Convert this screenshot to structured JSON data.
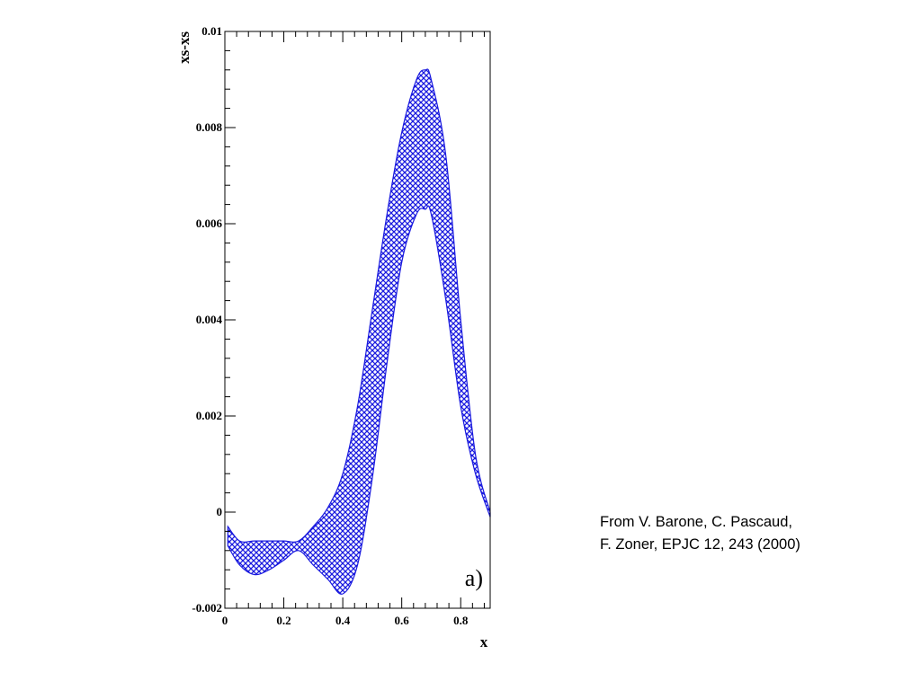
{
  "caption": {
    "line1": "From V. Barone, C. Pascaud,",
    "line2": "F. Zoner, EPJC 12, 243 (2000)"
  },
  "chart_data": {
    "type": "area",
    "title": "",
    "xlabel": "x",
    "ylabel": "xs-xs",
    "panel_label": "a)",
    "xlim": [
      0,
      0.9
    ],
    "ylim": [
      -0.002,
      0.01
    ],
    "x_ticks": [
      {
        "value": 0,
        "label": "0"
      },
      {
        "value": 0.2,
        "label": "0.2"
      },
      {
        "value": 0.4,
        "label": "0.4"
      },
      {
        "value": 0.6,
        "label": "0.6"
      },
      {
        "value": 0.8,
        "label": "0.8"
      }
    ],
    "y_ticks": [
      {
        "value": -0.002,
        "label": "-0.002"
      },
      {
        "value": 0,
        "label": "0"
      },
      {
        "value": 0.002,
        "label": "0.002"
      },
      {
        "value": 0.004,
        "label": "0.004"
      },
      {
        "value": 0.006,
        "label": "0.006"
      },
      {
        "value": 0.008,
        "label": "0.008"
      },
      {
        "value": 0.01,
        "label": "0.01"
      }
    ],
    "grid": false,
    "fill_color": "#1a1adf",
    "fill_style": "crosshatch",
    "band": {
      "x": [
        0.01,
        0.05,
        0.1,
        0.15,
        0.2,
        0.25,
        0.3,
        0.35,
        0.4,
        0.45,
        0.5,
        0.55,
        0.6,
        0.65,
        0.68,
        0.7,
        0.75,
        0.8,
        0.85,
        0.9
      ],
      "upper": [
        -0.0003,
        -0.0006,
        -0.0006,
        -0.0006,
        -0.0006,
        -0.0006,
        -0.0003,
        0.0001,
        0.0008,
        0.0022,
        0.0042,
        0.0062,
        0.0079,
        0.009,
        0.0092,
        0.009,
        0.0074,
        0.004,
        0.0012,
        0.0
      ],
      "lower": [
        -0.0007,
        -0.0011,
        -0.0013,
        -0.0012,
        -0.001,
        -0.0008,
        -0.0011,
        -0.0014,
        -0.0017,
        -0.0011,
        0.0007,
        0.0031,
        0.0052,
        0.0062,
        0.0063,
        0.0062,
        0.0044,
        0.0022,
        0.0008,
        -0.0001
      ]
    }
  }
}
